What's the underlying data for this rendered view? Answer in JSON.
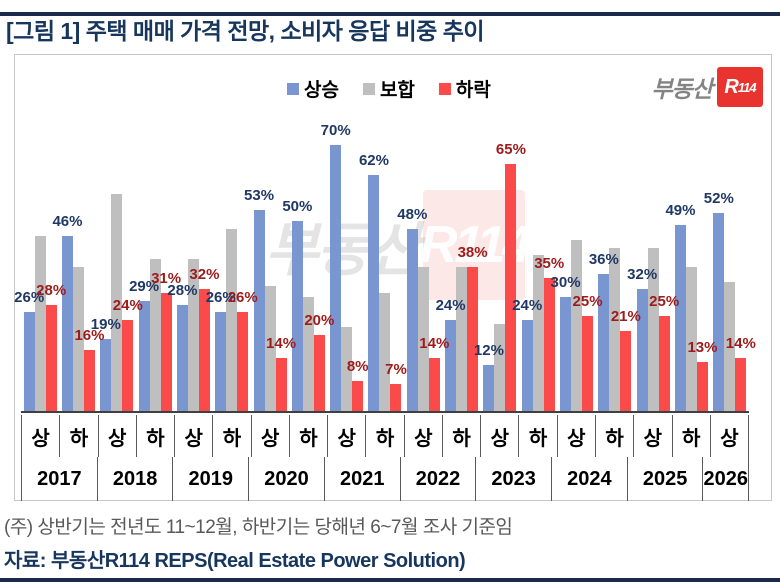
{
  "title": "[그림 1] 주택 매매 가격 전망, 소비자 응답 비중 추이",
  "legend": [
    {
      "label": "상승",
      "color": "#7a96d0"
    },
    {
      "label": "보합",
      "color": "#bfbfbf"
    },
    {
      "label": "하락",
      "color": "#fb4a4a"
    }
  ],
  "logo": {
    "prefix": "부동산",
    "box_r": "R",
    "box_num": "114"
  },
  "watermark": {
    "prefix": "부동산",
    "box": "R114"
  },
  "footnote": "(주) 상반기는 전년도 11~12월, 하반기는 당해년 6~7월 조사 기준임",
  "source": "자료: 부동산R114 REPS(Real Estate Power Solution)",
  "chart_data": {
    "type": "bar",
    "title": "주택 매매 가격 전망, 소비자 응답 비중 추이",
    "unit": "%",
    "ylim": [
      0,
      100
    ],
    "legend_position": "top-center",
    "grid": false,
    "categories": [
      "2017 상",
      "2017 하",
      "2018 상",
      "2018 하",
      "2019 상",
      "2019 하",
      "2020 상",
      "2020 하",
      "2021 상",
      "2021 하",
      "2022 상",
      "2022 하",
      "2023 상",
      "2023 하",
      "2024 상",
      "2024 하",
      "2025 상",
      "2025 하",
      "2026 상"
    ],
    "series": [
      {
        "name": "상승",
        "color": "#7a96d0",
        "label_color": "#1f3864",
        "labels_shown": true,
        "values": [
          26,
          46,
          19,
          29,
          28,
          26,
          53,
          50,
          70,
          62,
          48,
          24,
          12,
          24,
          30,
          36,
          32,
          49,
          52
        ]
      },
      {
        "name": "보합",
        "color": "#bfbfbf",
        "label_color": null,
        "labels_shown": false,
        "values": [
          46,
          38,
          57,
          40,
          40,
          48,
          33,
          30,
          22,
          31,
          38,
          38,
          23,
          41,
          45,
          43,
          43,
          38,
          34
        ]
      },
      {
        "name": "하락",
        "color": "#fb4a4a",
        "label_color": "#9e1b1b",
        "labels_shown": true,
        "values": [
          28,
          16,
          24,
          31,
          32,
          26,
          14,
          20,
          8,
          7,
          14,
          38,
          65,
          35,
          25,
          21,
          25,
          13,
          14
        ]
      }
    ],
    "years": [
      {
        "label": "2017",
        "halves": [
          "상",
          "하"
        ]
      },
      {
        "label": "2018",
        "halves": [
          "상",
          "하"
        ]
      },
      {
        "label": "2019",
        "halves": [
          "상",
          "하"
        ]
      },
      {
        "label": "2020",
        "halves": [
          "상",
          "하"
        ]
      },
      {
        "label": "2021",
        "halves": [
          "상",
          "하"
        ]
      },
      {
        "label": "2022",
        "halves": [
          "상",
          "하"
        ]
      },
      {
        "label": "2023",
        "halves": [
          "상",
          "하"
        ]
      },
      {
        "label": "2024",
        "halves": [
          "상",
          "하"
        ]
      },
      {
        "label": "2025",
        "halves": [
          "상",
          "하"
        ]
      },
      {
        "label": "2026",
        "halves": [
          "상"
        ]
      }
    ]
  }
}
